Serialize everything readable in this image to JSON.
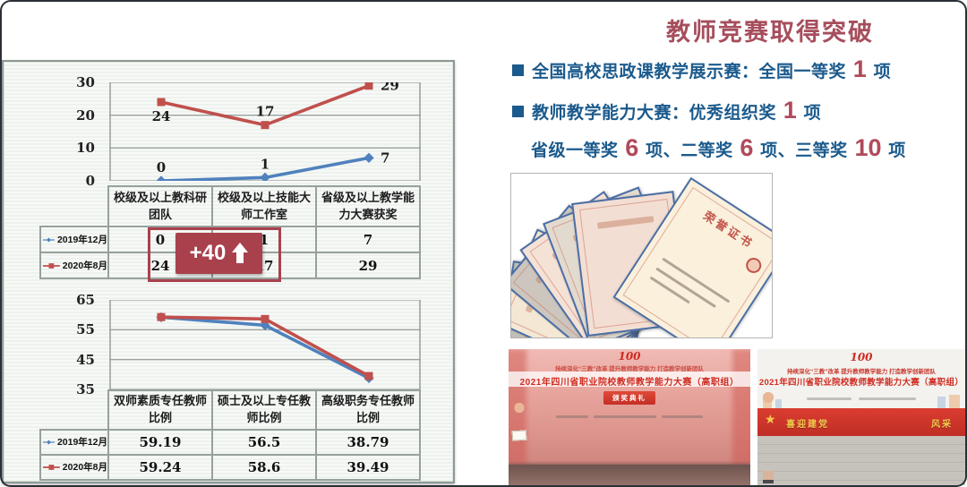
{
  "slide": {
    "title": "教师竞赛取得突破",
    "bullets": [
      {
        "marker": "square",
        "segments": [
          {
            "t": "全国高校思政课教学展示赛：全国一等奖 "
          },
          {
            "t": "1",
            "em": true
          },
          {
            "t": " 项"
          }
        ]
      },
      {
        "marker": "square",
        "segments": [
          {
            "t": "教师教学能力大赛：优秀组织奖 "
          },
          {
            "t": "1",
            "em": true
          },
          {
            "t": " 项"
          }
        ]
      },
      {
        "marker": "none",
        "segments": [
          {
            "t": "省级一等奖 "
          },
          {
            "t": "6",
            "em": true
          },
          {
            "t": " 项、二等奖 "
          },
          {
            "t": "6",
            "em": true
          },
          {
            "t": " 项、三等奖 "
          },
          {
            "t": "10",
            "em": true
          },
          {
            "t": " 项"
          }
        ]
      }
    ]
  },
  "chart_data": [
    {
      "type": "line",
      "title": "",
      "categories": [
        "校级及以上教科研团队",
        "校级及以上技能大师工作室",
        "省级及以上教学能力大赛获奖"
      ],
      "series": [
        {
          "name": "2019年12月",
          "color": "#4f81bd",
          "marker": "diamond",
          "values": [
            0,
            1,
            7
          ],
          "label_pos": [
            "above",
            "above",
            "right"
          ]
        },
        {
          "name": "2020年8月",
          "color": "#c0504d",
          "marker": "square",
          "values": [
            24,
            17,
            29
          ],
          "label_pos": [
            "below",
            "above",
            "right"
          ]
        }
      ],
      "ylim": [
        0,
        30
      ],
      "yticks": [
        30,
        20,
        10,
        0
      ],
      "grid": true,
      "show_point_labels": true,
      "data_table": true,
      "legend_position": "table-left"
    },
    {
      "type": "line",
      "title": "",
      "categories": [
        "双师素质专任教师比例",
        "硕士及以上专任教师比例",
        "高级职务专任教师比例"
      ],
      "series": [
        {
          "name": "2019年12月",
          "color": "#4f81bd",
          "marker": "diamond",
          "values": [
            59.19,
            56.5,
            38.79
          ]
        },
        {
          "name": "2020年8月",
          "color": "#c0504d",
          "marker": "square",
          "values": [
            59.24,
            58.6,
            39.49
          ]
        }
      ],
      "ylim": [
        35,
        65
      ],
      "yticks": [
        65,
        55,
        45,
        35
      ],
      "grid": true,
      "show_point_labels": false,
      "data_table": true,
      "legend_position": "table-left"
    }
  ],
  "annotation": {
    "label": "+40",
    "icon": "up-arrow"
  },
  "certificates": {
    "count": 7,
    "front_title": "荣誉证书"
  },
  "photos": [
    {
      "logo": "100",
      "tagline": "持续深化“三教”改革 提升教师教学能力 打造教学创新团队",
      "title": "2021年四川省职业院校教师教学能力大赛（高职组）",
      "badge": "颁奖典礼"
    },
    {
      "logo": "100",
      "tagline": "持续深化“三教”改革 提升教师教学能力 打造教学创新团队",
      "title": "2021年四川省职业院校教师教学能力大赛（高职组）",
      "banner_left": "喜迎建党",
      "banner_right": "风采"
    }
  ],
  "colors": {
    "title_red": "#a64e5c",
    "text_blue": "#1b5a8c",
    "num_red": "#b04a5a",
    "ann_red": "#a9414d",
    "line_blue": "#4f81bd",
    "line_red": "#c0504d",
    "grid_gray": "#9ba3a0"
  }
}
